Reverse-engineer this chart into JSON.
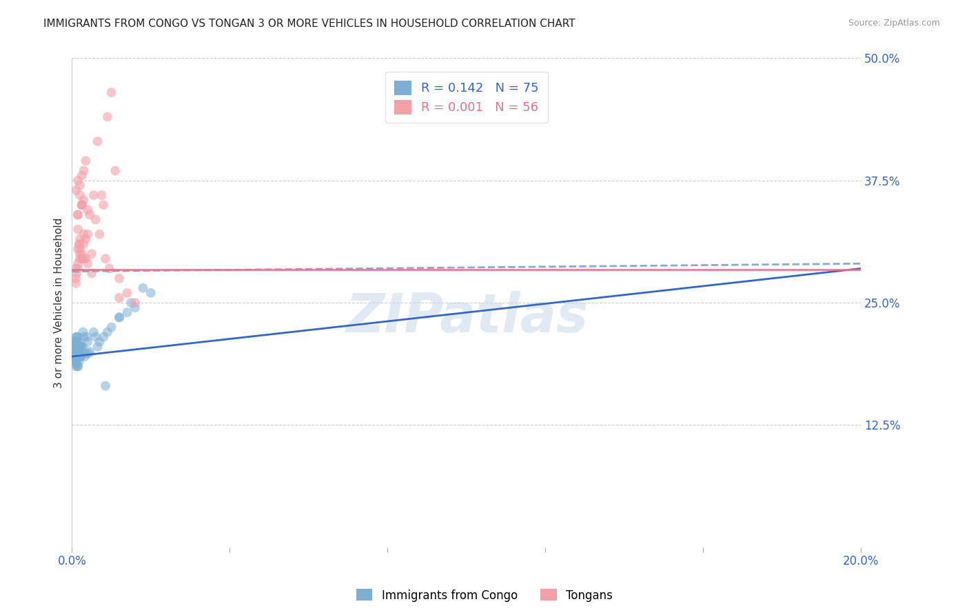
{
  "title": "IMMIGRANTS FROM CONGO VS TONGAN 3 OR MORE VEHICLES IN HOUSEHOLD CORRELATION CHART",
  "source": "Source: ZipAtlas.com",
  "ylabel": "3 or more Vehicles in Household",
  "legend_label_congo": "Immigrants from Congo",
  "legend_label_tongan": "Tongans",
  "r_congo": "0.142",
  "n_congo": "75",
  "r_tongan": "0.001",
  "n_tongan": "56",
  "x_min": 0.0,
  "x_max": 0.2,
  "y_min": 0.0,
  "y_max": 0.5,
  "x_tick_positions": [
    0.0,
    0.04,
    0.08,
    0.12,
    0.16,
    0.2
  ],
  "x_tick_labels": [
    "0.0%",
    "",
    "",
    "",
    "",
    "20.0%"
  ],
  "y_ticks_right": [
    0.125,
    0.25,
    0.375,
    0.5
  ],
  "y_tick_labels_right": [
    "12.5%",
    "25.0%",
    "37.5%",
    "50.0%"
  ],
  "color_congo": "#7BAFD4",
  "color_tongan": "#F4A0A8",
  "color_trend_congo": "#3366CC",
  "color_trend_tongan": "#E8718A",
  "color_trend_congo_dash": "#88AACC",
  "background_color": "#FFFFFF",
  "title_fontsize": 11,
  "watermark_text": "ZIPatlas",
  "watermark_color": "#C5D5E8",
  "congo_trend_x0": 0.0,
  "congo_trend_y0": 0.195,
  "congo_trend_x1": 0.2,
  "congo_trend_y1": 0.285,
  "tongan_trend_x0": 0.0,
  "tongan_trend_y0": 0.282,
  "tongan_trend_x1": 0.2,
  "tongan_trend_y1": 0.29,
  "congo_x": [
    0.0008,
    0.001,
    0.0012,
    0.0015,
    0.0008,
    0.001,
    0.0018,
    0.002,
    0.0012,
    0.0015,
    0.001,
    0.0008,
    0.0022,
    0.0018,
    0.0012,
    0.0015,
    0.0008,
    0.002,
    0.001,
    0.0012,
    0.0015,
    0.0008,
    0.0018,
    0.0022,
    0.001,
    0.0012,
    0.0015,
    0.0008,
    0.002,
    0.0018,
    0.001,
    0.0012,
    0.0015,
    0.0008,
    0.0022,
    0.0018,
    0.0012,
    0.001,
    0.0015,
    0.0008,
    0.002,
    0.0018,
    0.0012,
    0.0015,
    0.001,
    0.0022,
    0.0008,
    0.002,
    0.0018,
    0.0012,
    0.003,
    0.0025,
    0.0035,
    0.0028,
    0.004,
    0.0032,
    0.0028,
    0.0045,
    0.0038,
    0.0042,
    0.006,
    0.0055,
    0.007,
    0.0065,
    0.008,
    0.009,
    0.012,
    0.015,
    0.01,
    0.018,
    0.016,
    0.014,
    0.02,
    0.012,
    0.0085
  ],
  "congo_y": [
    0.2,
    0.195,
    0.205,
    0.198,
    0.192,
    0.21,
    0.2,
    0.195,
    0.205,
    0.198,
    0.215,
    0.19,
    0.2,
    0.195,
    0.188,
    0.205,
    0.21,
    0.195,
    0.185,
    0.2,
    0.215,
    0.195,
    0.2,
    0.205,
    0.192,
    0.188,
    0.2,
    0.205,
    0.195,
    0.21,
    0.2,
    0.195,
    0.185,
    0.2,
    0.195,
    0.205,
    0.21,
    0.195,
    0.2,
    0.188,
    0.205,
    0.195,
    0.2,
    0.185,
    0.21,
    0.195,
    0.2,
    0.205,
    0.19,
    0.215,
    0.215,
    0.205,
    0.198,
    0.22,
    0.21,
    0.195,
    0.205,
    0.2,
    0.215,
    0.198,
    0.215,
    0.22,
    0.21,
    0.205,
    0.215,
    0.22,
    0.235,
    0.25,
    0.225,
    0.265,
    0.245,
    0.24,
    0.26,
    0.235,
    0.165
  ],
  "tongan_x": [
    0.001,
    0.0015,
    0.002,
    0.0012,
    0.0018,
    0.0025,
    0.0015,
    0.002,
    0.001,
    0.003,
    0.0025,
    0.0015,
    0.002,
    0.001,
    0.003,
    0.0025,
    0.0015,
    0.0035,
    0.002,
    0.0025,
    0.0015,
    0.003,
    0.002,
    0.001,
    0.004,
    0.0025,
    0.0015,
    0.003,
    0.002,
    0.0035,
    0.0025,
    0.0015,
    0.004,
    0.003,
    0.002,
    0.005,
    0.0035,
    0.0045,
    0.0025,
    0.006,
    0.005,
    0.004,
    0.007,
    0.0055,
    0.0065,
    0.008,
    0.009,
    0.01,
    0.0075,
    0.0085,
    0.011,
    0.012,
    0.014,
    0.016,
    0.012,
    0.0095
  ],
  "tongan_y": [
    0.285,
    0.305,
    0.295,
    0.28,
    0.31,
    0.3,
    0.29,
    0.315,
    0.275,
    0.32,
    0.295,
    0.285,
    0.3,
    0.27,
    0.31,
    0.295,
    0.325,
    0.315,
    0.305,
    0.35,
    0.34,
    0.355,
    0.36,
    0.365,
    0.345,
    0.38,
    0.375,
    0.385,
    0.37,
    0.395,
    0.35,
    0.34,
    0.32,
    0.295,
    0.31,
    0.3,
    0.295,
    0.34,
    0.35,
    0.335,
    0.28,
    0.29,
    0.32,
    0.36,
    0.415,
    0.35,
    0.44,
    0.465,
    0.36,
    0.295,
    0.385,
    0.275,
    0.26,
    0.25,
    0.255,
    0.285
  ]
}
